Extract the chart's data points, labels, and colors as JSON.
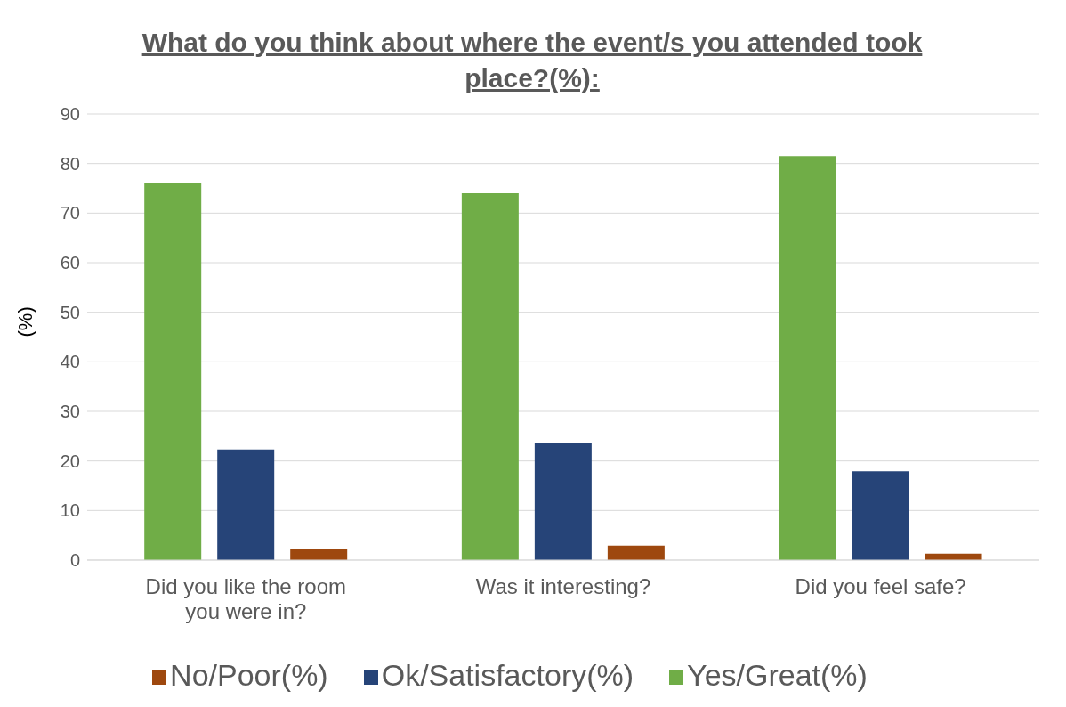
{
  "chart_data": {
    "type": "bar",
    "title": "What do you think about where the event/s you attended took place?(%):",
    "ylabel": "(%)",
    "categories": [
      "Did you like the room you were in?",
      "Was it interesting?",
      "Did you feel safe?"
    ],
    "series": [
      {
        "name": "Yes/Great(%)",
        "color": "#70ad47",
        "values": [
          76,
          74,
          81.5
        ]
      },
      {
        "name": "Ok/Satisfactory(%)",
        "color": "#264478",
        "values": [
          22.3,
          23.7,
          17.9
        ]
      },
      {
        "name": "No/Poor(%)",
        "color": "#9e480e",
        "values": [
          2.2,
          2.9,
          1.3
        ]
      }
    ],
    "ylim": [
      0,
      90
    ],
    "yticks": [
      0,
      10,
      20,
      30,
      40,
      50,
      60,
      70,
      80,
      90
    ],
    "grid": "y",
    "legend": "bottom"
  }
}
